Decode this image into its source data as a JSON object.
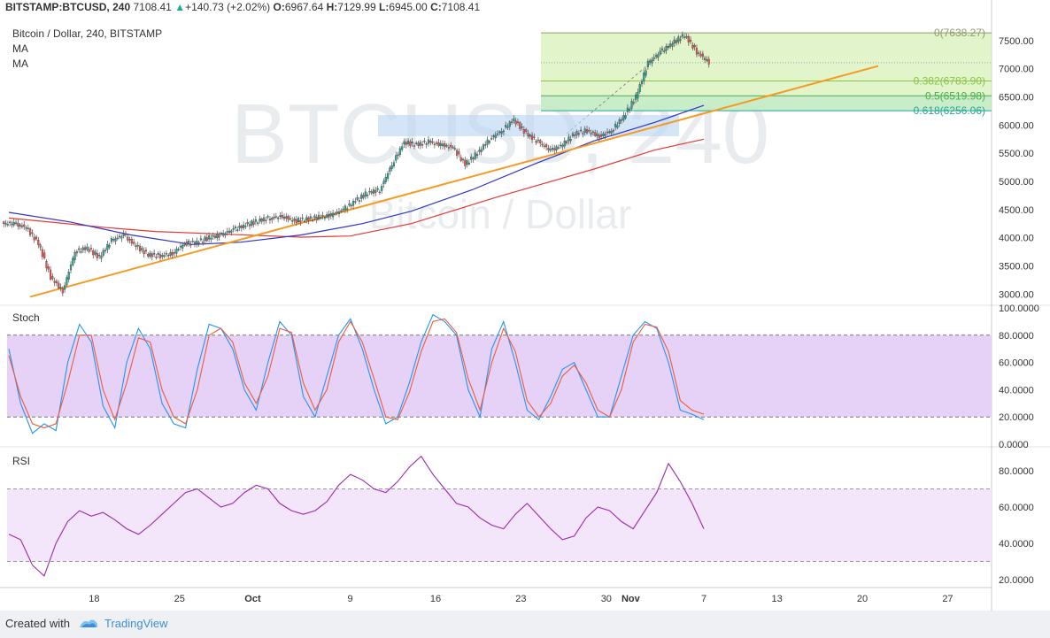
{
  "header": {
    "symbol": "BITSTAMP:BTCUSD, 240",
    "last": "7108.41",
    "change": "+140.73 (+2.02%)",
    "o_label": "O:",
    "o": "6967.64",
    "h_label": "H:",
    "h": "7129.99",
    "l_label": "L:",
    "l": "6945.00",
    "c_label": "C:",
    "c": "7108.41"
  },
  "legend": {
    "title": "Bitcoin / Dollar, 240, BITSTAMP",
    "ma1": "MA",
    "ma2": "MA"
  },
  "watermark": {
    "ticker": "BTCUSD, 240",
    "name": "Bitcoin / Dollar"
  },
  "panes": {
    "stoch_label": "Stoch",
    "rsi_label": "RSI"
  },
  "footer": {
    "created": "Created with",
    "brand": "TradingView"
  },
  "colors": {
    "up": "#26a69a",
    "down": "#ef5350",
    "ma_red": "#e53935",
    "ma_blue": "#2e34c8",
    "trend": "#f59a23",
    "stoch_k": "#2196f3",
    "stoch_d": "#ef5a3a",
    "rsi": "#9c27b0",
    "fib_fill": "#d7f0b8",
    "stoch_band": "#e6d2f7",
    "rsi_band": "#f3e6fb"
  },
  "chart_data": {
    "type": "candlestick",
    "title": "Bitcoin / Dollar, 240, BITSTAMP",
    "x_ticks": [
      "18",
      "25",
      "Oct",
      "9",
      "16",
      "23",
      "30",
      "Nov",
      "7",
      "13",
      "20",
      "27"
    ],
    "price_axis": {
      "ticks": [
        "7500.00",
        "7000.00",
        "6500.00",
        "6000.00",
        "5500.00",
        "5000.00",
        "4500.00",
        "4000.00",
        "3500.00",
        "3000.00"
      ],
      "range": [
        2800,
        7750
      ]
    },
    "close_series": [
      {
        "date": "Sep 11",
        "close": 4250
      },
      {
        "date": "Sep 12",
        "close": 4180
      },
      {
        "date": "Sep 13",
        "close": 3900
      },
      {
        "date": "Sep 14",
        "close": 3300
      },
      {
        "date": "Sep 15",
        "close": 3050
      },
      {
        "date": "Sep 16",
        "close": 3750
      },
      {
        "date": "Sep 17",
        "close": 3820
      },
      {
        "date": "Sep 18",
        "close": 3650
      },
      {
        "date": "Sep 19",
        "close": 3950
      },
      {
        "date": "Sep 20",
        "close": 4050
      },
      {
        "date": "Sep 21",
        "close": 3850
      },
      {
        "date": "Sep 22",
        "close": 3700
      },
      {
        "date": "Sep 23",
        "close": 3680
      },
      {
        "date": "Sep 24",
        "close": 3720
      },
      {
        "date": "Sep 25",
        "close": 3900
      },
      {
        "date": "Sep 26",
        "close": 3920
      },
      {
        "date": "Sep 27",
        "close": 4000
      },
      {
        "date": "Sep 28",
        "close": 4050
      },
      {
        "date": "Sep 29",
        "close": 4150
      },
      {
        "date": "Sep 30",
        "close": 4220
      },
      {
        "date": "Oct 1",
        "close": 4300
      },
      {
        "date": "Oct 2",
        "close": 4350
      },
      {
        "date": "Oct 3",
        "close": 4380
      },
      {
        "date": "Oct 4",
        "close": 4300
      },
      {
        "date": "Oct 5",
        "close": 4330
      },
      {
        "date": "Oct 6",
        "close": 4360
      },
      {
        "date": "Oct 7",
        "close": 4400
      },
      {
        "date": "Oct 8",
        "close": 4500
      },
      {
        "date": "Oct 9",
        "close": 4650
      },
      {
        "date": "Oct 10",
        "close": 4800
      },
      {
        "date": "Oct 11",
        "close": 4850
      },
      {
        "date": "Oct 12",
        "close": 5300
      },
      {
        "date": "Oct 13",
        "close": 5700
      },
      {
        "date": "Oct 14",
        "close": 5650
      },
      {
        "date": "Oct 15",
        "close": 5700
      },
      {
        "date": "Oct 16",
        "close": 5650
      },
      {
        "date": "Oct 17",
        "close": 5600
      },
      {
        "date": "Oct 18",
        "close": 5300
      },
      {
        "date": "Oct 19",
        "close": 5500
      },
      {
        "date": "Oct 20",
        "close": 5750
      },
      {
        "date": "Oct 21",
        "close": 5900
      },
      {
        "date": "Oct 22",
        "close": 6100
      },
      {
        "date": "Oct 23",
        "close": 5850
      },
      {
        "date": "Oct 24",
        "close": 5700
      },
      {
        "date": "Oct 25",
        "close": 5550
      },
      {
        "date": "Oct 26",
        "close": 5650
      },
      {
        "date": "Oct 27",
        "close": 5850
      },
      {
        "date": "Oct 28",
        "close": 5900
      },
      {
        "date": "Oct 29",
        "close": 5800
      },
      {
        "date": "Oct 30",
        "close": 5900
      },
      {
        "date": "Oct 31",
        "close": 6150
      },
      {
        "date": "Nov 1",
        "close": 6500
      },
      {
        "date": "Nov 2",
        "close": 7100
      },
      {
        "date": "Nov 3",
        "close": 7300
      },
      {
        "date": "Nov 4",
        "close": 7450
      },
      {
        "date": "Nov 5",
        "close": 7600
      },
      {
        "date": "Nov 6",
        "close": 7300
      },
      {
        "date": "Nov 7",
        "close": 7108
      }
    ],
    "moving_averages": [
      {
        "name": "MA",
        "color": "#e53935",
        "points": [
          [
            0,
            4350
          ],
          [
            8,
            4180
          ],
          [
            12,
            4110
          ],
          [
            18,
            4060
          ],
          [
            24,
            4010
          ],
          [
            28,
            4030
          ],
          [
            33,
            4250
          ],
          [
            40,
            4720
          ],
          [
            48,
            5220
          ],
          [
            53,
            5560
          ],
          [
            57,
            5750
          ]
        ]
      },
      {
        "name": "MA",
        "color": "#2e34c8",
        "points": [
          [
            0,
            4450
          ],
          [
            5,
            4280
          ],
          [
            10,
            4050
          ],
          [
            15,
            3880
          ],
          [
            19,
            3920
          ],
          [
            24,
            4050
          ],
          [
            29,
            4250
          ],
          [
            33,
            4470
          ],
          [
            38,
            4850
          ],
          [
            43,
            5300
          ],
          [
            48,
            5720
          ],
          [
            53,
            6050
          ],
          [
            57,
            6350
          ]
        ]
      }
    ],
    "trendline": {
      "start": [
        0,
        2950
      ],
      "end": [
        58,
        7050
      ]
    },
    "fibonacci": [
      {
        "label": "0(7638.27)",
        "price": 7638.27
      },
      {
        "label": "0.382(6783.90)",
        "price": 6783.9
      },
      {
        "label": "0.5(6519.98)",
        "price": 6519.98
      },
      {
        "label": "0.618(6256.06)",
        "price": 6256.06
      }
    ],
    "stoch": {
      "axis_ticks": [
        "100.0000",
        "80.0000",
        "60.0000",
        "40.0000",
        "20.0000",
        "0.0000"
      ],
      "band": [
        20,
        80
      ],
      "k": [
        70,
        30,
        8,
        15,
        10,
        60,
        88,
        75,
        28,
        12,
        60,
        85,
        70,
        30,
        15,
        12,
        55,
        88,
        85,
        70,
        40,
        25,
        60,
        90,
        80,
        35,
        20,
        50,
        80,
        92,
        70,
        40,
        15,
        20,
        45,
        75,
        95,
        90,
        80,
        40,
        20,
        70,
        90,
        60,
        25,
        18,
        35,
        55,
        60,
        40,
        20,
        20,
        50,
        80,
        90,
        85,
        60,
        25,
        22,
        18
      ],
      "d": [
        65,
        35,
        15,
        12,
        15,
        45,
        80,
        80,
        40,
        18,
        45,
        78,
        75,
        40,
        20,
        15,
        40,
        80,
        85,
        75,
        45,
        30,
        50,
        85,
        82,
        45,
        25,
        40,
        75,
        90,
        75,
        48,
        20,
        18,
        38,
        68,
        90,
        92,
        82,
        48,
        25,
        60,
        85,
        68,
        32,
        20,
        30,
        50,
        58,
        45,
        25,
        20,
        40,
        75,
        88,
        86,
        68,
        32,
        25,
        22
      ]
    },
    "rsi": {
      "axis_ticks": [
        "80.0000",
        "60.0000",
        "40.0000",
        "20.0000"
      ],
      "band": [
        30,
        70
      ],
      "values": [
        45,
        42,
        28,
        22,
        40,
        52,
        58,
        55,
        57,
        53,
        48,
        45,
        50,
        56,
        62,
        68,
        70,
        65,
        60,
        62,
        68,
        72,
        70,
        62,
        58,
        56,
        58,
        63,
        72,
        78,
        75,
        70,
        68,
        74,
        82,
        88,
        78,
        70,
        62,
        60,
        54,
        50,
        48,
        56,
        62,
        55,
        48,
        42,
        44,
        54,
        60,
        58,
        52,
        48,
        58,
        68,
        84,
        74,
        62,
        48
      ]
    }
  }
}
